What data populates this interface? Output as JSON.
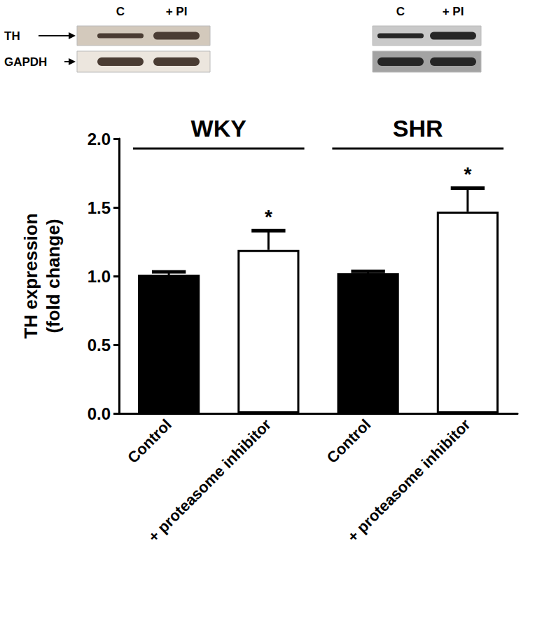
{
  "chart_data": {
    "type": "bar",
    "ylabel": "TH expression\n(fold change)",
    "categories": [
      "Control",
      "+ proteasome inhibitor",
      "Control",
      "+ proteasome inhibitor"
    ],
    "values": [
      1.01,
      1.19,
      1.02,
      1.47
    ],
    "errors": [
      0.02,
      0.14,
      0.015,
      0.17
    ],
    "colors": [
      "#000000",
      "#ffffff",
      "#000000",
      "#ffffff"
    ],
    "ylim": [
      0,
      2
    ],
    "yticks": [
      {
        "value": 0,
        "label": "0.0"
      },
      0.5,
      {
        "value": 1,
        "label": "1.0"
      },
      1.5,
      {
        "value": 2,
        "label": "2.0"
      }
    ],
    "grid": false,
    "significance": [
      null,
      "*",
      null,
      "*"
    ],
    "groups": [
      {
        "label": "WKY",
        "categories": [
          0,
          1
        ]
      },
      {
        "label": "SHR",
        "categories": [
          2,
          3
        ]
      }
    ],
    "blot": {
      "row_labels": [
        "TH",
        "GAPDH"
      ],
      "lane_labels": [
        "C",
        "+ PI"
      ]
    }
  }
}
